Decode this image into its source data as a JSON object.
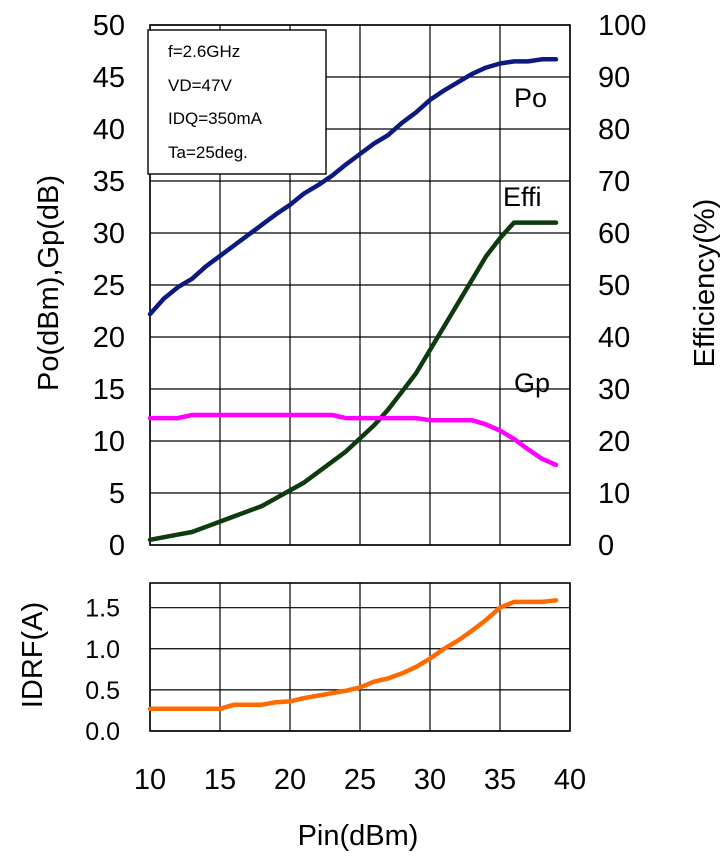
{
  "conditions": [
    "f=2.6GHz",
    "VD=47V",
    "IDQ=350mA",
    "Ta=25deg."
  ],
  "chart_data": [
    {
      "type": "line",
      "xlabel": "Pin(dBm)",
      "ylabel": "Po(dBm),Gp(dB)",
      "y2label": "Efficiency(%)",
      "xlim": [
        10,
        40
      ],
      "ylim": [
        0,
        50
      ],
      "y2lim": [
        0,
        100
      ],
      "xticks": [
        "10",
        "15",
        "20",
        "25",
        "30",
        "35",
        "40"
      ],
      "yticks": [
        "0",
        "5",
        "10",
        "15",
        "20",
        "25",
        "30",
        "35",
        "40",
        "45",
        "50"
      ],
      "y2ticks": [
        "0",
        "10",
        "20",
        "30",
        "40",
        "50",
        "60",
        "70",
        "80",
        "90",
        "100"
      ],
      "grid": true,
      "series": [
        {
          "name": "Po",
          "axis": "left",
          "color": "#0c1a80",
          "x": [
            10,
            11,
            12,
            13,
            14,
            15,
            16,
            17,
            18,
            19,
            20,
            21,
            22,
            23,
            24,
            25,
            26,
            27,
            28,
            29,
            30,
            31,
            32,
            33,
            34,
            35,
            36,
            37,
            38,
            39
          ],
          "y": [
            22.2,
            23.7,
            24.8,
            25.6,
            26.8,
            27.8,
            28.8,
            29.8,
            30.8,
            31.8,
            32.7,
            33.8,
            34.6,
            35.5,
            36.6,
            37.6,
            38.6,
            39.4,
            40.6,
            41.6,
            42.8,
            43.7,
            44.5,
            45.3,
            45.9,
            46.3,
            46.5,
            46.5,
            46.7,
            46.7
          ]
        },
        {
          "name": "Effi",
          "axis": "right",
          "color": "#0d3b0d",
          "x": [
            10,
            11,
            12,
            13,
            14,
            15,
            16,
            17,
            18,
            19,
            20,
            21,
            22,
            23,
            24,
            25,
            26,
            27,
            28,
            29,
            30,
            31,
            32,
            33,
            34,
            35,
            36,
            37,
            38,
            39
          ],
          "y": [
            1.0,
            1.5,
            2.0,
            2.5,
            3.5,
            4.5,
            5.5,
            6.5,
            7.5,
            9.0,
            10.5,
            12.0,
            14.0,
            16.0,
            18.0,
            20.5,
            23.0,
            26.0,
            29.5,
            33.0,
            37.5,
            42.0,
            46.5,
            51.0,
            55.5,
            59.0,
            62.0,
            62.0,
            62.0,
            62.0
          ]
        },
        {
          "name": "Gp",
          "axis": "left",
          "color": "#ff00ff",
          "x": [
            10,
            11,
            12,
            13,
            14,
            15,
            16,
            17,
            18,
            19,
            20,
            21,
            22,
            23,
            24,
            25,
            26,
            27,
            28,
            29,
            30,
            31,
            32,
            33,
            34,
            35,
            36,
            37,
            38,
            39
          ],
          "y": [
            12.2,
            12.2,
            12.2,
            12.5,
            12.5,
            12.5,
            12.5,
            12.5,
            12.5,
            12.5,
            12.5,
            12.5,
            12.5,
            12.5,
            12.2,
            12.2,
            12.2,
            12.2,
            12.2,
            12.2,
            12.0,
            12.0,
            12.0,
            12.0,
            11.6,
            11.0,
            10.2,
            9.2,
            8.3,
            7.7
          ]
        }
      ]
    },
    {
      "type": "line",
      "ylabel": "IDRF(A)",
      "xlim": [
        10,
        40
      ],
      "ylim": [
        0.0,
        1.8
      ],
      "yticks": [
        "0.0",
        "0.5",
        "1.0",
        "1.5"
      ],
      "grid": true,
      "series": [
        {
          "name": "",
          "color": "#ff6a00",
          "x": [
            10,
            11,
            12,
            13,
            14,
            15,
            16,
            17,
            18,
            19,
            20,
            21,
            22,
            23,
            24,
            25,
            26,
            27,
            28,
            29,
            30,
            31,
            32,
            33,
            34,
            35,
            36,
            37,
            38,
            39
          ],
          "y": [
            0.27,
            0.27,
            0.27,
            0.27,
            0.27,
            0.27,
            0.32,
            0.32,
            0.32,
            0.35,
            0.36,
            0.4,
            0.43,
            0.46,
            0.49,
            0.53,
            0.6,
            0.64,
            0.7,
            0.78,
            0.88,
            1.0,
            1.1,
            1.22,
            1.35,
            1.5,
            1.57,
            1.57,
            1.57,
            1.59
          ]
        }
      ]
    }
  ]
}
